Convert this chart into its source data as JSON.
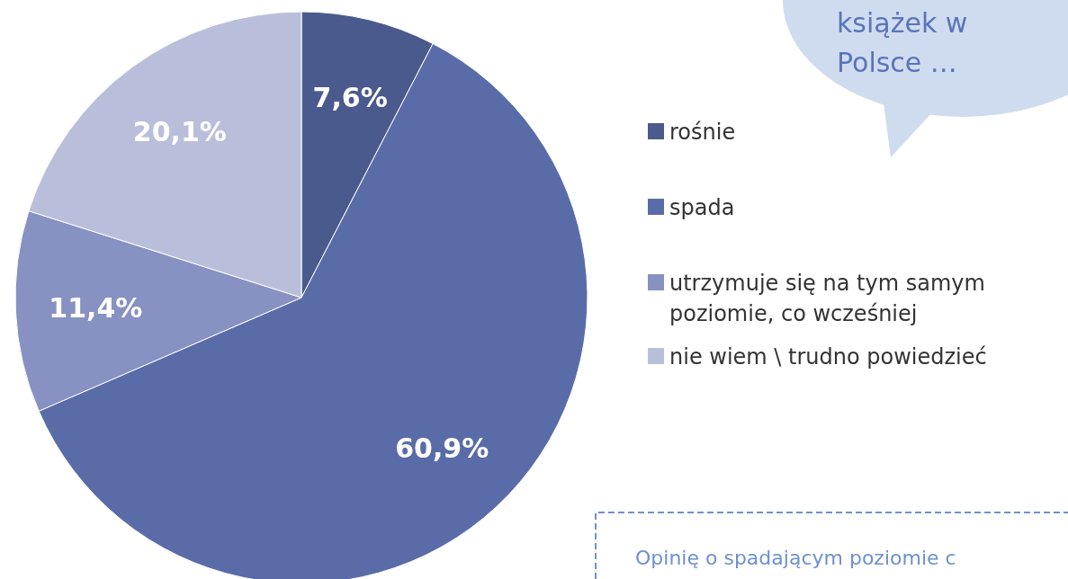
{
  "chart_data": {
    "type": "pie",
    "categories": [
      "rośnie",
      "spada",
      "utrzymuje się na tym samym poziomie, co wcześniej",
      "nie wiem \\ trudno powiedzieć"
    ],
    "values": [
      7.6,
      60.9,
      11.4,
      20.1
    ],
    "colors": [
      "#4a5a8c",
      "#5a6ca8",
      "#8791c2",
      "#b9bfdb"
    ],
    "value_labels": [
      "7,6%",
      "60,9%",
      "11,4%",
      "20,1%"
    ],
    "legend": "right",
    "annotations": [
      "książek w Polsce …",
      "Opinię o spadającym poziomie c"
    ]
  }
}
